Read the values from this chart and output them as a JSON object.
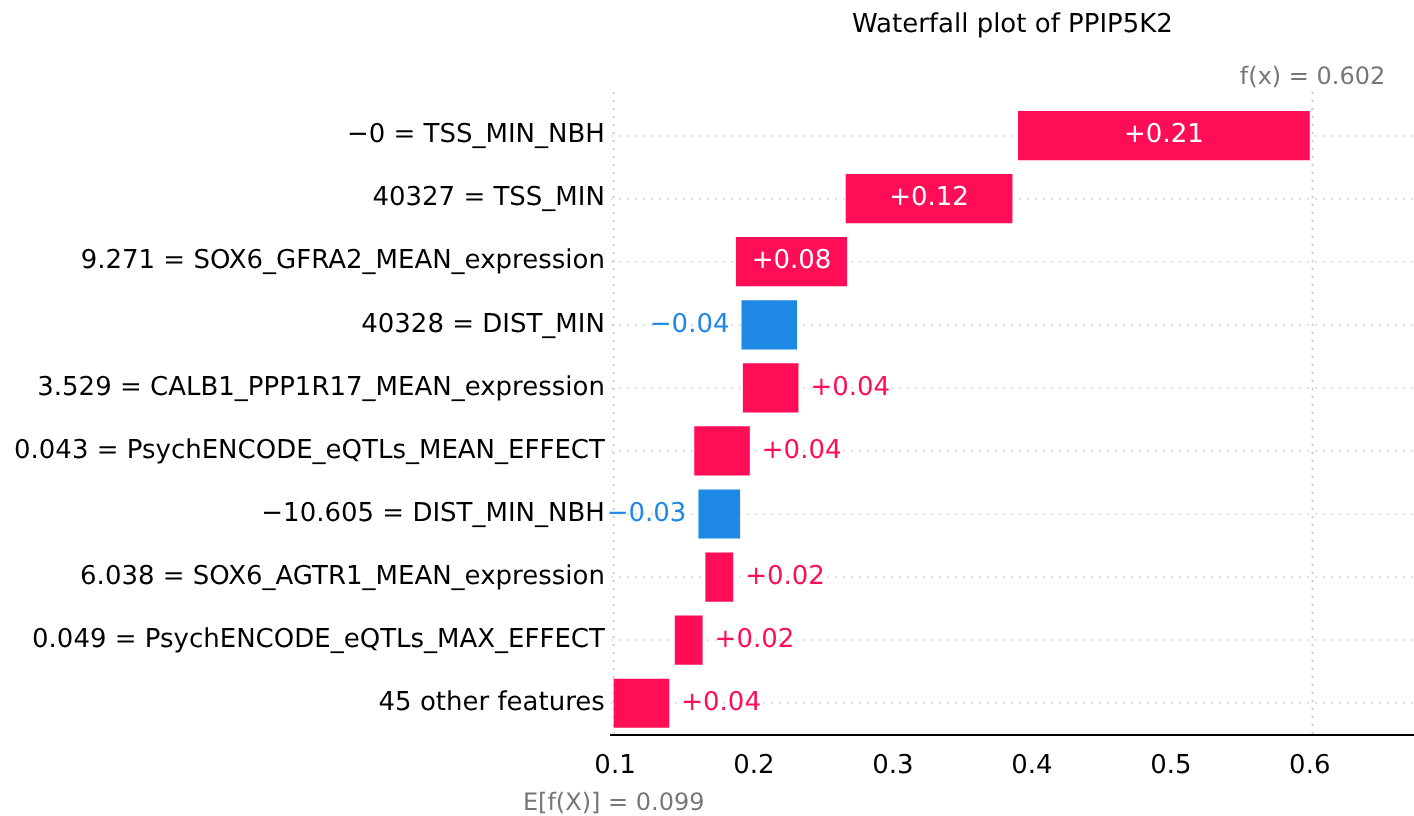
{
  "chart_data": {
    "type": "bar",
    "orientation": "horizontal",
    "title": "Waterfall plot of PPIP5K2",
    "categories": [
      "−0 = TSS_MIN_NBH",
      "40327 = TSS_MIN",
      "9.271 = SOX6_GFRA2_MEAN_expression",
      "40328 = DIST_MIN",
      "3.529 = CALB1_PPP1R17_MEAN_expression",
      "0.043 = PsychENCODE_eQTLs_MEAN_EFFECT",
      "−10.605 = DIST_MIN_NBH",
      "6.038 = SOX6_AGTR1_MEAN_expression",
      "0.049 = PsychENCODE_eQTLs_MAX_EFFECT",
      "45 other features"
    ],
    "values": [
      0.21,
      0.12,
      0.08,
      -0.04,
      0.04,
      0.04,
      -0.03,
      0.02,
      0.02,
      0.04
    ],
    "base": [
      0.39,
      0.266,
      0.187,
      0.231,
      0.192,
      0.157,
      0.19,
      0.165,
      0.143,
      0.099
    ],
    "colors": [
      "#ff0d57",
      "#ff0d57",
      "#ff0d57",
      "#1e88e5",
      "#ff0d57",
      "#ff0d57",
      "#1e88e5",
      "#ff0d57",
      "#ff0d57",
      "#ff0d57"
    ],
    "value_labels": [
      "+0.21",
      "+0.12",
      "+0.08",
      "−0.04",
      "+0.04",
      "+0.04",
      "−0.03",
      "+0.02",
      "+0.02",
      "+0.04"
    ],
    "xlim": [
      0.097,
      0.675
    ],
    "xticks": [
      0.1,
      0.2,
      0.3,
      0.4,
      0.5,
      0.6
    ],
    "ref_lines": [
      {
        "axis": "x",
        "value": 0.602,
        "label": "f(x) = 0.602",
        "color": "#cccccc",
        "line_style": "dotted"
      },
      {
        "axis": "x",
        "value": 0.099,
        "label": "E[f(X)] = 0.099",
        "color": "#cccccc",
        "line_style": "dotted"
      }
    ],
    "grid": "y",
    "legend": false
  }
}
